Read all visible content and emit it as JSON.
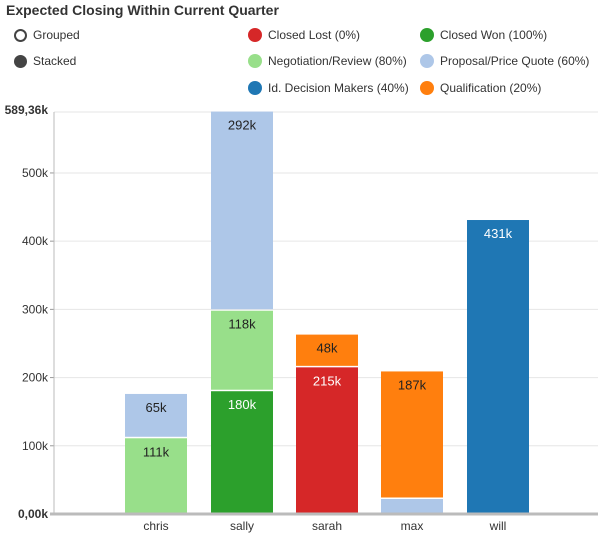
{
  "header": {
    "title": "Expected Closing Within Current Quarter"
  },
  "controls": {
    "grouped_label": "Grouped",
    "stacked_label": "Stacked",
    "selected": "stacked"
  },
  "colors": {
    "closed_lost": "#d62728",
    "closed_won": "#2ca02c",
    "negotiation": "#98df8a",
    "proposal": "#aec7e8",
    "decision": "#1f77b4",
    "qualification": "#ff7f0e"
  },
  "chart_data": {
    "type": "bar",
    "stacked": true,
    "title": "Expected Closing Within Current Quarter",
    "categories": [
      "chris",
      "sally",
      "sarah",
      "max",
      "will"
    ],
    "y_max_label": "589,36k",
    "y_zero_label": "0,00k",
    "yticks": [
      {
        "value": 100000,
        "label": "100k"
      },
      {
        "value": 200000,
        "label": "200k"
      },
      {
        "value": 300000,
        "label": "300k"
      },
      {
        "value": 400000,
        "label": "400k"
      },
      {
        "value": 500000,
        "label": "500k"
      }
    ],
    "ylim": [
      0,
      589360
    ],
    "series": [
      {
        "name": "Closed Lost (0%)",
        "color": "#d62728",
        "values": [
          0,
          0,
          215000,
          0,
          0
        ],
        "labels": [
          "",
          "",
          "215k",
          "",
          ""
        ],
        "label_color": "#ffffff"
      },
      {
        "name": "Closed Won (100%)",
        "color": "#2ca02c",
        "values": [
          0,
          180000,
          0,
          0,
          0
        ],
        "labels": [
          "",
          "180k",
          "",
          "",
          ""
        ],
        "label_color": "#ffffff"
      },
      {
        "name": "Negotiation/Review (80%)",
        "color": "#98df8a",
        "values": [
          111000,
          118000,
          0,
          0,
          0
        ],
        "labels": [
          "111k",
          "118k",
          "",
          "",
          ""
        ],
        "label_color": "#222222"
      },
      {
        "name": "Proposal/Price Quote (60%)",
        "color": "#aec7e8",
        "values": [
          65000,
          292000,
          0,
          22000,
          0
        ],
        "labels": [
          "65k",
          "292k",
          "",
          "",
          ""
        ],
        "label_color": "#222222"
      },
      {
        "name": "Id. Decision Makers (40%)",
        "color": "#1f77b4",
        "values": [
          0,
          0,
          0,
          0,
          431000
        ],
        "labels": [
          "",
          "",
          "",
          "",
          "431k"
        ],
        "label_color": "#ffffff"
      },
      {
        "name": "Qualification (20%)",
        "color": "#ff7f0e",
        "values": [
          0,
          0,
          48000,
          187000,
          0
        ],
        "labels": [
          "",
          "",
          "48k",
          "187k",
          ""
        ],
        "label_color": "#222222"
      }
    ]
  }
}
